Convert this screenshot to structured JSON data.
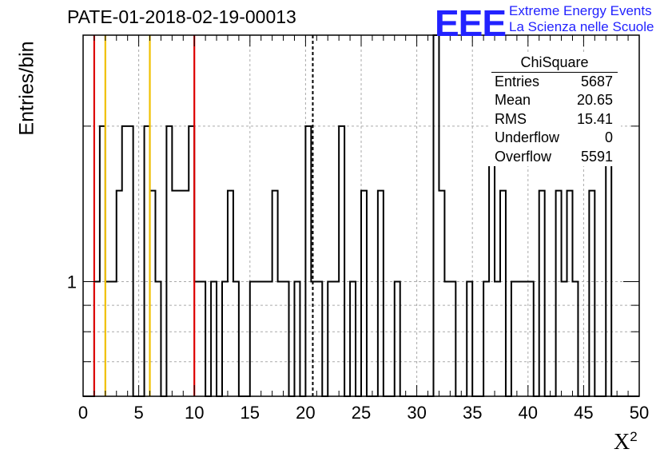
{
  "title": "PATE-01-2018-02-19-00013",
  "logo": {
    "mark": "EEE",
    "line1": "Extreme Energy Events",
    "line2": "La Scienza nelle Scuole",
    "color": "#2222ff"
  },
  "stats": {
    "title": "ChiSquare",
    "rows": [
      {
        "label": "Entries",
        "value": "5687"
      },
      {
        "label": "Mean",
        "value": "20.65"
      },
      {
        "label": "RMS",
        "value": "15.41"
      },
      {
        "label": "Underflow",
        "value": "0"
      },
      {
        "label": "Overflow",
        "value": "5591"
      }
    ]
  },
  "chart_data": {
    "type": "histogram",
    "title": "PATE-01-2018-02-19-00013",
    "xlabel": "X",
    "xlabel_superscript": "2",
    "ylabel": "Entries/bin",
    "xlim": [
      0,
      50
    ],
    "ylim": [
      0.6,
      3.0
    ],
    "ylog": true,
    "grid": true,
    "xticks": [
      0,
      5,
      10,
      15,
      20,
      25,
      30,
      35,
      40,
      45,
      50
    ],
    "yticks": [
      1
    ],
    "bin_width": 0.5,
    "bins": [
      {
        "x": 1.0,
        "y": 1
      },
      {
        "x": 1.5,
        "y": 2
      },
      {
        "x": 2.0,
        "y": 1
      },
      {
        "x": 2.5,
        "y": 1
      },
      {
        "x": 3.0,
        "y": 1.5
      },
      {
        "x": 3.5,
        "y": 2
      },
      {
        "x": 4.0,
        "y": 2
      },
      {
        "x": 5.5,
        "y": 2
      },
      {
        "x": 6.0,
        "y": 1.5
      },
      {
        "x": 6.5,
        "y": 1
      },
      {
        "x": 7.5,
        "y": 2
      },
      {
        "x": 8.0,
        "y": 1.5
      },
      {
        "x": 8.5,
        "y": 1.5
      },
      {
        "x": 9.0,
        "y": 1.5
      },
      {
        "x": 9.5,
        "y": 2
      },
      {
        "x": 10.0,
        "y": 1
      },
      {
        "x": 10.5,
        "y": 1
      },
      {
        "x": 11.5,
        "y": 1
      },
      {
        "x": 12.5,
        "y": 1
      },
      {
        "x": 13.0,
        "y": 1.5
      },
      {
        "x": 13.5,
        "y": 1
      },
      {
        "x": 15.0,
        "y": 1
      },
      {
        "x": 15.5,
        "y": 1
      },
      {
        "x": 16.0,
        "y": 1
      },
      {
        "x": 16.5,
        "y": 1
      },
      {
        "x": 17.0,
        "y": 1.5
      },
      {
        "x": 17.5,
        "y": 1
      },
      {
        "x": 18.0,
        "y": 1
      },
      {
        "x": 19.0,
        "y": 1
      },
      {
        "x": 20.0,
        "y": 2
      },
      {
        "x": 20.5,
        "y": 1
      },
      {
        "x": 21.0,
        "y": 1
      },
      {
        "x": 22.0,
        "y": 1
      },
      {
        "x": 22.5,
        "y": 1
      },
      {
        "x": 23.0,
        "y": 2
      },
      {
        "x": 24.0,
        "y": 1
      },
      {
        "x": 25.0,
        "y": 1.5
      },
      {
        "x": 26.5,
        "y": 1.5
      },
      {
        "x": 28.0,
        "y": 1
      },
      {
        "x": 31.5,
        "y": 3
      },
      {
        "x": 32.0,
        "y": 1.5
      },
      {
        "x": 32.5,
        "y": 1
      },
      {
        "x": 33.0,
        "y": 1
      },
      {
        "x": 34.5,
        "y": 1
      },
      {
        "x": 36.0,
        "y": 1
      },
      {
        "x": 36.5,
        "y": 2
      },
      {
        "x": 37.0,
        "y": 1
      },
      {
        "x": 37.5,
        "y": 1.5
      },
      {
        "x": 38.5,
        "y": 1
      },
      {
        "x": 39.0,
        "y": 1
      },
      {
        "x": 39.5,
        "y": 1
      },
      {
        "x": 40.0,
        "y": 1
      },
      {
        "x": 41.0,
        "y": 1.5
      },
      {
        "x": 42.5,
        "y": 1.5
      },
      {
        "x": 43.0,
        "y": 1
      },
      {
        "x": 43.5,
        "y": 1.5
      },
      {
        "x": 44.0,
        "y": 1
      },
      {
        "x": 45.5,
        "y": 1.5
      },
      {
        "x": 47.0,
        "y": 2
      }
    ],
    "vlines": [
      {
        "x": 1.0,
        "color": "#dd0000",
        "style": "solid"
      },
      {
        "x": 10.0,
        "color": "#dd0000",
        "style": "solid"
      },
      {
        "x": 2.0,
        "color": "#f0c000",
        "style": "solid"
      },
      {
        "x": 6.0,
        "color": "#f0c000",
        "style": "solid"
      },
      {
        "x": 20.65,
        "color": "#000000",
        "style": "dashed"
      }
    ]
  }
}
